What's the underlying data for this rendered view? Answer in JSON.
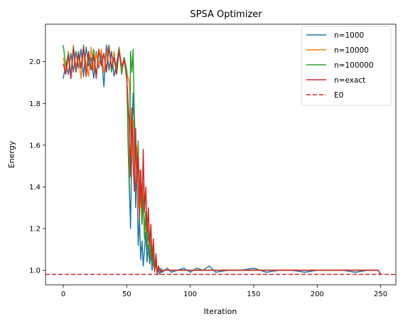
{
  "chart_data": {
    "type": "line",
    "title": "SPSA Optimizer",
    "xlabel": "Iteration",
    "ylabel": "Energy",
    "xlim": [
      -14,
      262
    ],
    "ylim": [
      0.93,
      2.18
    ],
    "xticks": [
      0,
      50,
      100,
      150,
      200,
      250
    ],
    "yticks": [
      1.0,
      1.2,
      1.4,
      1.6,
      1.8,
      2.0
    ],
    "ytick_labels": [
      "1.0",
      "1.2",
      "1.4",
      "1.6",
      "1.8",
      "2.0"
    ],
    "grid": false,
    "legend_position": "top-right",
    "hline": {
      "name": "E0",
      "y": 0.98,
      "color": "#d62728",
      "style": "dashed"
    },
    "series": [
      {
        "name": "n=1000",
        "color": "#1f77b4",
        "x": [
          0,
          2,
          4,
          6,
          8,
          10,
          12,
          14,
          16,
          18,
          20,
          22,
          24,
          26,
          28,
          30,
          32,
          34,
          36,
          38,
          40,
          42,
          44,
          46,
          48,
          50,
          52,
          53,
          54,
          55,
          56,
          57,
          58,
          59,
          60,
          61,
          62,
          63,
          64,
          65,
          66,
          67,
          68,
          69,
          70,
          71,
          72,
          73,
          74,
          75,
          76,
          77,
          78,
          80,
          82,
          85,
          90,
          95,
          100,
          105,
          110,
          115,
          120,
          130,
          140,
          150,
          160,
          170,
          180,
          190,
          200,
          210,
          220,
          230,
          240,
          248,
          250
        ],
        "y": [
          1.92,
          1.99,
          1.94,
          2.04,
          1.95,
          2.05,
          1.97,
          2.06,
          1.93,
          2.07,
          1.98,
          2.02,
          1.92,
          2.05,
          1.97,
          2.04,
          1.88,
          2.08,
          1.96,
          2.05,
          1.93,
          1.99,
          2.07,
          1.95,
          2.02,
          1.96,
          1.4,
          1.2,
          1.62,
          1.85,
          1.68,
          1.3,
          1.52,
          1.12,
          1.25,
          1.05,
          1.14,
          1.02,
          1.1,
          1.18,
          1.04,
          1.12,
          1.03,
          1.08,
          1.0,
          1.05,
          1.0,
          1.03,
          0.99,
          1.0,
          0.98,
          1.01,
          0.99,
          1.0,
          1.01,
          0.99,
          1.0,
          1.01,
          0.99,
          1.01,
          1.0,
          1.02,
          0.99,
          1.0,
          1.0,
          1.01,
          0.99,
          1.0,
          1.0,
          0.99,
          1.0,
          1.0,
          1.0,
          0.99,
          1.0,
          1.0,
          0.98
        ]
      },
      {
        "name": "n=10000",
        "color": "#ff7f0e",
        "x": [
          0,
          2,
          4,
          6,
          8,
          10,
          12,
          14,
          16,
          18,
          20,
          22,
          24,
          26,
          28,
          30,
          32,
          34,
          36,
          38,
          40,
          42,
          44,
          46,
          48,
          50,
          52,
          54,
          55,
          56,
          57,
          58,
          59,
          60,
          61,
          62,
          63,
          64,
          65,
          66,
          67,
          68,
          69,
          70,
          71,
          72,
          73,
          74,
          75,
          76,
          78,
          80,
          85,
          90,
          100,
          110,
          120,
          130,
          140,
          150,
          160,
          170,
          180,
          190,
          200,
          210,
          220,
          230,
          240,
          248,
          250
        ],
        "y": [
          2.02,
          1.96,
          2.05,
          1.94,
          2.08,
          1.97,
          2.03,
          1.92,
          2.06,
          1.99,
          1.93,
          2.07,
          1.96,
          2.04,
          1.98,
          2.06,
          1.95,
          2.03,
          2.08,
          1.96,
          2.05,
          1.94,
          2.07,
          1.97,
          2.02,
          1.95,
          1.9,
          1.55,
          1.72,
          1.38,
          1.62,
          1.58,
          1.3,
          1.48,
          1.35,
          1.22,
          1.42,
          1.18,
          1.28,
          1.12,
          1.22,
          1.08,
          1.15,
          1.05,
          1.1,
          1.02,
          1.06,
          0.99,
          1.02,
          1.0,
          1.0,
          1.0,
          1.0,
          1.0,
          1.0,
          1.0,
          1.0,
          1.0,
          1.0,
          1.0,
          1.0,
          1.0,
          1.0,
          1.0,
          1.0,
          1.0,
          1.0,
          1.0,
          1.0,
          1.0,
          0.98
        ]
      },
      {
        "name": "n=100000",
        "color": "#2ca02c",
        "x": [
          0,
          2,
          4,
          6,
          8,
          10,
          12,
          14,
          16,
          18,
          20,
          22,
          24,
          26,
          28,
          30,
          32,
          34,
          36,
          38,
          40,
          42,
          44,
          46,
          48,
          50,
          51,
          52,
          53,
          54,
          55,
          56,
          57,
          58,
          59,
          60,
          61,
          62,
          63,
          64,
          65,
          66,
          67,
          68,
          69,
          70,
          71,
          72,
          73,
          74,
          75,
          76,
          78,
          80,
          85,
          90,
          100,
          110,
          120,
          130,
          140,
          150,
          160,
          170,
          180,
          190,
          200,
          210,
          220,
          230,
          240,
          248,
          250
        ],
        "y": [
          2.08,
          1.98,
          2.04,
          1.92,
          2.07,
          1.95,
          2.05,
          1.97,
          2.08,
          1.94,
          2.02,
          1.96,
          2.06,
          1.93,
          2.05,
          1.99,
          2.04,
          1.96,
          2.08,
          1.95,
          2.02,
          1.97,
          2.06,
          1.94,
          2.02,
          1.96,
          1.62,
          1.38,
          2.05,
          1.95,
          2.06,
          1.75,
          1.58,
          1.45,
          1.62,
          1.32,
          1.48,
          1.22,
          1.35,
          1.15,
          1.28,
          1.1,
          1.2,
          1.05,
          1.12,
          1.02,
          1.08,
          1.0,
          1.03,
          0.99,
          1.01,
          1.0,
          1.0,
          1.0,
          1.0,
          1.0,
          1.0,
          1.0,
          1.0,
          1.0,
          1.0,
          1.0,
          1.0,
          1.0,
          1.0,
          1.0,
          1.0,
          1.0,
          1.0,
          1.0,
          1.0,
          1.0,
          0.98
        ]
      },
      {
        "name": "n=exact",
        "color": "#d62728",
        "x": [
          0,
          2,
          4,
          6,
          8,
          10,
          12,
          14,
          16,
          18,
          20,
          22,
          24,
          26,
          28,
          30,
          32,
          34,
          36,
          38,
          40,
          42,
          44,
          46,
          48,
          50,
          52,
          53,
          54,
          55,
          56,
          57,
          58,
          59,
          60,
          61,
          62,
          63,
          64,
          65,
          66,
          67,
          68,
          69,
          70,
          71,
          72,
          73,
          74,
          75,
          76,
          77,
          78,
          80,
          85,
          90,
          100,
          110,
          120,
          130,
          140,
          150,
          160,
          170,
          180,
          190,
          200,
          210,
          220,
          230,
          240,
          248,
          250
        ],
        "y": [
          1.99,
          1.94,
          2.03,
          1.92,
          2.06,
          1.95,
          2.04,
          1.97,
          2.07,
          1.93,
          2.05,
          1.96,
          2.03,
          1.92,
          2.06,
          1.98,
          2.04,
          1.95,
          2.07,
          1.97,
          2.02,
          1.94,
          2.05,
          1.98,
          2.01,
          1.92,
          1.7,
          1.45,
          1.78,
          1.52,
          1.38,
          1.68,
          1.42,
          1.55,
          1.25,
          1.48,
          1.3,
          1.58,
          1.28,
          1.4,
          1.18,
          1.3,
          1.12,
          1.22,
          1.05,
          1.15,
          0.99,
          1.08,
          0.98,
          1.02,
          1.0,
          0.99,
          1.0,
          1.0,
          1.0,
          1.0,
          1.0,
          1.0,
          1.0,
          1.0,
          1.0,
          1.0,
          1.0,
          1.0,
          1.0,
          1.0,
          1.0,
          1.0,
          1.0,
          1.0,
          1.0,
          1.0,
          0.98
        ]
      }
    ]
  }
}
